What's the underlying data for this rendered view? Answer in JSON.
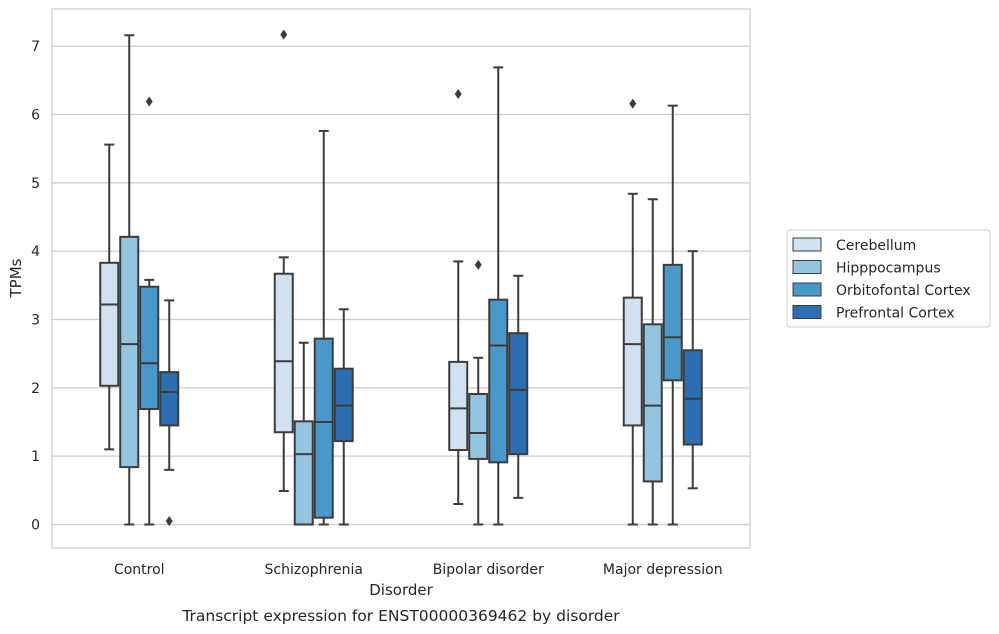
{
  "chart_data": {
    "type": "box",
    "xlabel": "Disorder",
    "ylabel": "TPMs",
    "caption": "Transcript expression for ENST00000369462 by disorder",
    "ylim": [
      -0.35,
      7.55
    ],
    "yticks": [
      0,
      1,
      2,
      3,
      4,
      5,
      6,
      7
    ],
    "grid": "horizontal",
    "legend_position": "right",
    "categories": [
      "Control",
      "Schizophrenia",
      "Bipolar disorder",
      "Major depression"
    ],
    "series": [
      {
        "name": "Cerebellum",
        "color": "#d0e1f2",
        "boxes": [
          {
            "whislo": 1.1,
            "q1": 2.03,
            "med": 3.22,
            "q3": 3.83,
            "whishi": 5.56,
            "fliers": []
          },
          {
            "whislo": 0.49,
            "q1": 1.35,
            "med": 2.39,
            "q3": 3.67,
            "whishi": 3.91,
            "fliers": [
              7.17
            ]
          },
          {
            "whislo": 0.3,
            "q1": 1.09,
            "med": 1.7,
            "q3": 2.38,
            "whishi": 3.85,
            "fliers": [
              6.3
            ]
          },
          {
            "whislo": 0.0,
            "q1": 1.45,
            "med": 2.64,
            "q3": 3.32,
            "whishi": 4.84,
            "fliers": [
              6.16
            ]
          }
        ]
      },
      {
        "name": "Hipppocampus",
        "color": "#94c4df",
        "boxes": [
          {
            "whislo": 0.0,
            "q1": 0.84,
            "med": 2.64,
            "q3": 4.21,
            "whishi": 7.16,
            "fliers": []
          },
          {
            "whislo": 0.0,
            "q1": 0.0,
            "med": 1.03,
            "q3": 1.51,
            "whishi": 2.66,
            "fliers": []
          },
          {
            "whislo": 0.0,
            "q1": 0.96,
            "med": 1.34,
            "q3": 1.91,
            "whishi": 2.44,
            "fliers": [
              3.8
            ]
          },
          {
            "whislo": 0.0,
            "q1": 0.63,
            "med": 1.74,
            "q3": 2.93,
            "whishi": 4.76,
            "fliers": []
          }
        ]
      },
      {
        "name": "Orbitofontal Cortex",
        "color": "#4a98c9",
        "boxes": [
          {
            "whislo": 0.0,
            "q1": 1.69,
            "med": 2.36,
            "q3": 3.48,
            "whishi": 3.58,
            "fliers": [
              6.19
            ]
          },
          {
            "whislo": 0.0,
            "q1": 0.1,
            "med": 1.5,
            "q3": 2.72,
            "whishi": 5.76,
            "fliers": []
          },
          {
            "whislo": 0.0,
            "q1": 0.91,
            "med": 2.62,
            "q3": 3.29,
            "whishi": 6.69,
            "fliers": []
          },
          {
            "whislo": 0.0,
            "q1": 2.11,
            "med": 2.74,
            "q3": 3.8,
            "whishi": 6.13,
            "fliers": []
          }
        ]
      },
      {
        "name": "Prefrontal Cortex",
        "color": "#2b6fb0",
        "boxes": [
          {
            "whislo": 0.8,
            "q1": 1.45,
            "med": 1.94,
            "q3": 2.23,
            "whishi": 3.28,
            "fliers": [
              0.05
            ]
          },
          {
            "whislo": 0.0,
            "q1": 1.22,
            "med": 1.74,
            "q3": 2.28,
            "whishi": 3.15,
            "fliers": []
          },
          {
            "whislo": 0.39,
            "q1": 1.03,
            "med": 1.97,
            "q3": 2.8,
            "whishi": 3.64,
            "fliers": []
          },
          {
            "whislo": 0.53,
            "q1": 1.17,
            "med": 1.84,
            "q3": 2.55,
            "whishi": 4.0,
            "fliers": []
          }
        ]
      }
    ]
  }
}
